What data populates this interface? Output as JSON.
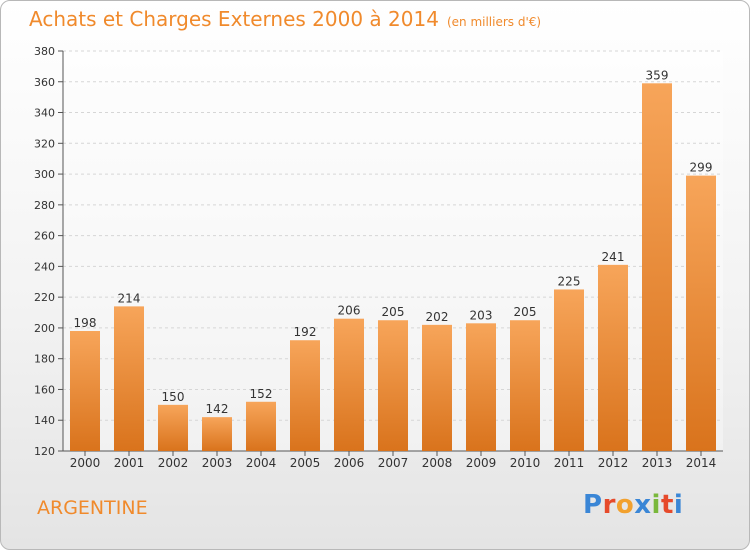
{
  "header": {
    "title": "Achats et Charges Externes 2000 à 2014",
    "subtitle": "(en milliers d'€)"
  },
  "footer": {
    "country": "ARGENTINE",
    "logo_text": "Proxiti",
    "logo_colors": [
      "#3a86d6",
      "#e64a2b",
      "#f2a12e",
      "#3a86d6",
      "#7ab83c",
      "#e64a2b",
      "#3a86d6"
    ]
  },
  "chart_data": {
    "type": "bar",
    "title": "Achats et Charges Externes 2000 à 2014",
    "subtitle": "(en milliers d'€)",
    "categories": [
      "2000",
      "2001",
      "2002",
      "2003",
      "2004",
      "2005",
      "2006",
      "2007",
      "2008",
      "2009",
      "2010",
      "2011",
      "2012",
      "2013",
      "2014"
    ],
    "values": [
      198,
      214,
      150,
      142,
      152,
      192,
      206,
      205,
      202,
      203,
      205,
      225,
      241,
      359,
      299
    ],
    "ylim": [
      120,
      380
    ],
    "yticks": [
      120,
      140,
      160,
      180,
      200,
      220,
      240,
      260,
      280,
      300,
      320,
      340,
      360,
      380
    ],
    "grid": true,
    "bar_color_top": "#f7a55a",
    "bar_color_bottom": "#d9731c",
    "title_color": "#f08a2c"
  }
}
